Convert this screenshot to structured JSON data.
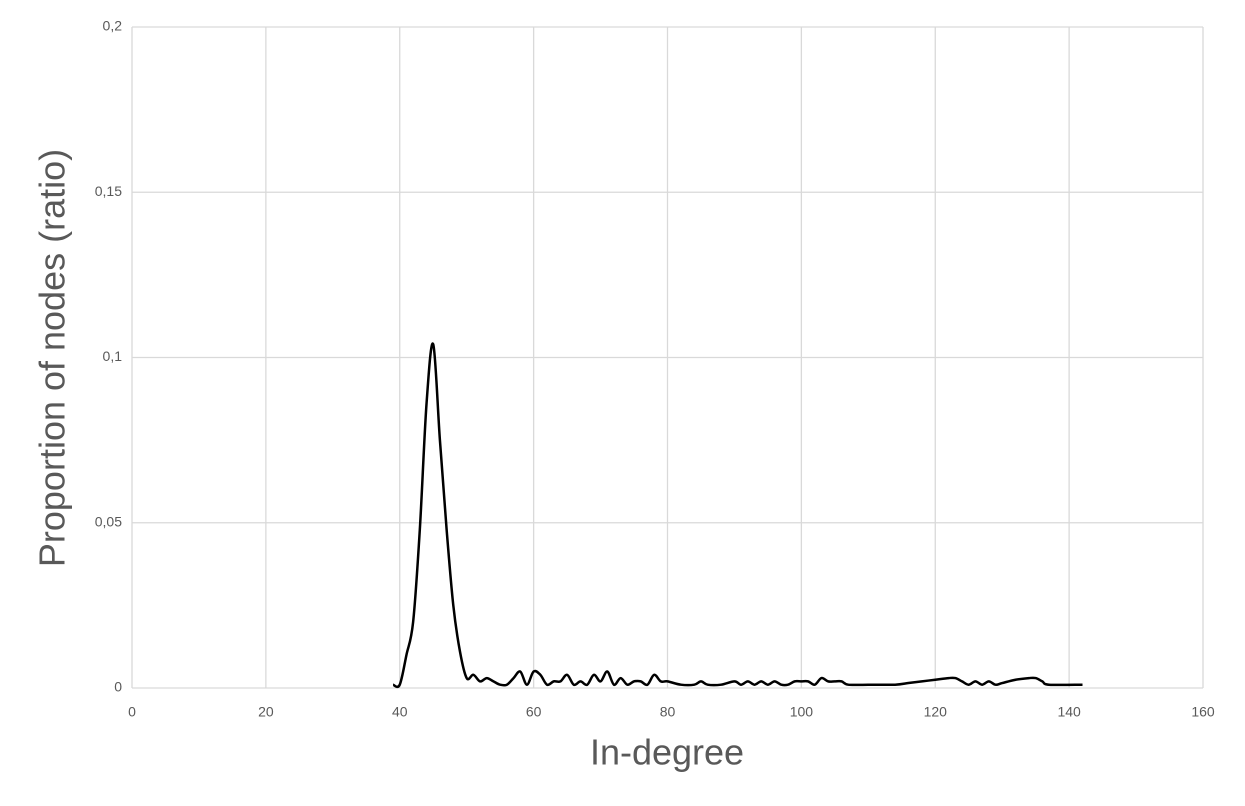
{
  "chart_data": {
    "type": "line",
    "x_label": "In-degree",
    "y_label": "Proportion of nodes (ratio)",
    "x": [
      39,
      40,
      41,
      42,
      43,
      44,
      45,
      46,
      47,
      48,
      49,
      50,
      51,
      52,
      53,
      54,
      55,
      56,
      57,
      58,
      59,
      60,
      61,
      62,
      63,
      64,
      65,
      66,
      67,
      68,
      69,
      70,
      71,
      72,
      73,
      74,
      75,
      76,
      77,
      78,
      79,
      80,
      82,
      84,
      85,
      86,
      88,
      90,
      91,
      92,
      93,
      94,
      95,
      96,
      97,
      98,
      99,
      100,
      101,
      102,
      103,
      104,
      105,
      106,
      107,
      110,
      114,
      116,
      118,
      120,
      122,
      123,
      124,
      125,
      126,
      127,
      128,
      129,
      130,
      132,
      134,
      135,
      136,
      137,
      142
    ],
    "series": [
      {
        "name": "In-degree",
        "color": "#000000",
        "values": [
          0.001,
          0.001,
          0.01,
          0.02,
          0.048,
          0.086,
          0.104,
          0.075,
          0.048,
          0.025,
          0.011,
          0.003,
          0.004,
          0.002,
          0.003,
          0.002,
          0.001,
          0.001,
          0.003,
          0.005,
          0.001,
          0.005,
          0.004,
          0.001,
          0.002,
          0.002,
          0.004,
          0.001,
          0.002,
          0.001,
          0.004,
          0.002,
          0.005,
          0.001,
          0.003,
          0.001,
          0.002,
          0.002,
          0.001,
          0.004,
          0.002,
          0.002,
          0.001,
          0.001,
          0.002,
          0.001,
          0.001,
          0.002,
          0.001,
          0.002,
          0.001,
          0.002,
          0.001,
          0.002,
          0.001,
          0.001,
          0.002,
          0.002,
          0.002,
          0.001,
          0.003,
          0.002,
          0.002,
          0.002,
          0.001,
          0.001,
          0.001,
          0.0015,
          0.002,
          0.0025,
          0.003,
          0.003,
          0.002,
          0.001,
          0.002,
          0.001,
          0.002,
          0.001,
          0.0015,
          0.0025,
          0.003,
          0.003,
          0.002,
          0.001,
          0.001
        ]
      }
    ],
    "xlim": [
      0,
      160
    ],
    "xticks": [
      0,
      20,
      40,
      60,
      80,
      100,
      120,
      140,
      160
    ],
    "ylim": [
      0,
      0.2
    ],
    "yticks": [
      0,
      {
        "value": 0.05,
        "label": "0,05"
      },
      {
        "value": 0.1,
        "label": "0,1"
      },
      {
        "value": 0.15,
        "label": "0,15"
      },
      {
        "value": 0.2,
        "label": "0,2"
      }
    ],
    "grid": true
  }
}
